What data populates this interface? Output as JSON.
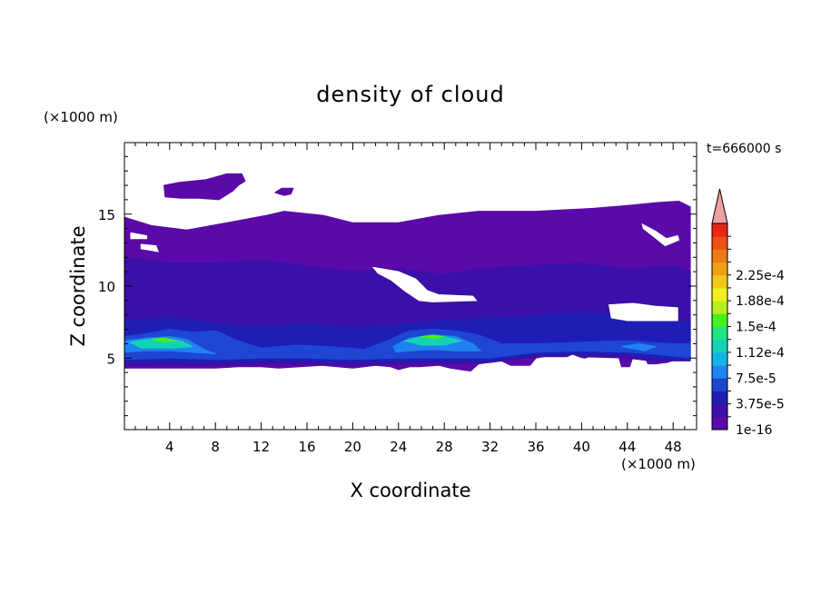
{
  "chart_data": {
    "type": "heatmap",
    "title": "density of cloud",
    "xlabel": "X coordinate",
    "ylabel": "Z coordinate",
    "x_unit": "(×1000 m)",
    "y_unit": "(×1000 m)",
    "time_label": "t=666000 s",
    "xlim": [
      0,
      50
    ],
    "ylim": [
      0,
      20
    ],
    "x_ticks": [
      4,
      8,
      12,
      16,
      20,
      24,
      28,
      32,
      36,
      40,
      44,
      48
    ],
    "y_ticks": [
      5,
      10,
      15
    ],
    "colorbar": {
      "labels": [
        "1e-16",
        "3.75e-5",
        "7.5e-5",
        "1.12e-4",
        "1.5e-4",
        "1.88e-4",
        "2.25e-4"
      ],
      "colors": [
        "#5a0aa8",
        "#3a10a8",
        "#1e1eb4",
        "#1e46d2",
        "#1e82f0",
        "#14b4e6",
        "#14d2b4",
        "#1ee682",
        "#46f01e",
        "#b4f01e",
        "#f0f01e",
        "#f0c814",
        "#f0a014",
        "#f07814",
        "#f05014",
        "#e62814"
      ],
      "extend_color": "#f0a0a0"
    },
    "cloud_layers": [
      {
        "level": "1e-16",
        "color": "#5a0aa8",
        "outline": [
          [
            0,
            14.8
          ],
          [
            2.4,
            14.2
          ],
          [
            5.5,
            13.9
          ],
          [
            9,
            14.4
          ],
          [
            12.4,
            14.9
          ],
          [
            14,
            15.2
          ],
          [
            17.5,
            14.9
          ],
          [
            20,
            14.4
          ],
          [
            24,
            14.4
          ],
          [
            27.5,
            14.9
          ],
          [
            31,
            15.2
          ],
          [
            36,
            15.2
          ],
          [
            41,
            15.4
          ],
          [
            44,
            15.6
          ],
          [
            46.5,
            15.8
          ],
          [
            48.5,
            15.9
          ],
          [
            49.5,
            15.5
          ],
          [
            49.5,
            9.4
          ],
          [
            49,
            6.2
          ],
          [
            48.5,
            5.0
          ],
          [
            47.5,
            4.7
          ],
          [
            46.5,
            4.6
          ],
          [
            45.8,
            4.6
          ],
          [
            45.5,
            5.1
          ],
          [
            44.5,
            5.1
          ],
          [
            44.2,
            4.4
          ],
          [
            43.5,
            4.4
          ],
          [
            43.2,
            5.2
          ],
          [
            41.5,
            5.3
          ],
          [
            40.3,
            5.0
          ],
          [
            38,
            5.3
          ],
          [
            36,
            5.0
          ],
          [
            35.5,
            4.5
          ],
          [
            33.8,
            4.5
          ],
          [
            33,
            4.8
          ],
          [
            31,
            4.6
          ],
          [
            30.3,
            4.1
          ],
          [
            28.5,
            4.3
          ],
          [
            27.5,
            4.5
          ],
          [
            25.8,
            4.4
          ],
          [
            25,
            4.4
          ],
          [
            24,
            4.2
          ],
          [
            23.3,
            4.4
          ],
          [
            22,
            4.5
          ],
          [
            20,
            4.3
          ],
          [
            17.3,
            4.5
          ],
          [
            13.5,
            4.3
          ],
          [
            12,
            4.4
          ],
          [
            10,
            4.4
          ],
          [
            8,
            4.3
          ],
          [
            5,
            4.3
          ],
          [
            3,
            4.3
          ],
          [
            0,
            4.3
          ]
        ]
      },
      {
        "level": "1e-16",
        "color": "#5a0aa8",
        "outline": [
          [
            3.5,
            17.0
          ],
          [
            4.8,
            17.2
          ],
          [
            7.2,
            17.4
          ],
          [
            9.0,
            17.8
          ],
          [
            10.3,
            17.8
          ],
          [
            10.6,
            17.3
          ],
          [
            10.0,
            17.0
          ],
          [
            9.5,
            16.6
          ],
          [
            8.3,
            16.0
          ],
          [
            6.5,
            16.1
          ],
          [
            5.0,
            16.1
          ],
          [
            3.6,
            16.2
          ]
        ]
      },
      {
        "level": "1e-16",
        "color": "#5a0aa8",
        "outline": [
          [
            13.2,
            16.5
          ],
          [
            13.8,
            16.8
          ],
          [
            14.8,
            16.8
          ],
          [
            14.6,
            16.4
          ],
          [
            14.0,
            16.3
          ]
        ]
      },
      {
        "level": "3.75e-5",
        "color": "#3a10a8",
        "outline": [
          [
            0,
            12.0
          ],
          [
            4,
            11.6
          ],
          [
            8,
            11.6
          ],
          [
            12,
            11.8
          ],
          [
            16,
            11.4
          ],
          [
            20,
            11.0
          ],
          [
            24,
            11.2
          ],
          [
            28,
            10.8
          ],
          [
            31,
            11.2
          ],
          [
            35,
            11.4
          ],
          [
            40,
            11.6
          ],
          [
            44,
            11.2
          ],
          [
            48,
            11.4
          ],
          [
            49.5,
            11.0
          ],
          [
            49.5,
            4.8
          ],
          [
            46,
            4.8
          ],
          [
            44,
            5.0
          ],
          [
            40,
            5.1
          ],
          [
            36,
            5.1
          ],
          [
            32,
            4.7
          ],
          [
            28,
            4.6
          ],
          [
            24,
            4.6
          ],
          [
            20,
            4.5
          ],
          [
            16,
            4.6
          ],
          [
            12,
            4.6
          ],
          [
            8,
            4.5
          ],
          [
            4,
            4.5
          ],
          [
            0,
            4.5
          ]
        ]
      },
      {
        "level": "7.5e-5",
        "color": "#1e1eb4",
        "outline": [
          [
            0,
            7.6
          ],
          [
            4,
            7.8
          ],
          [
            8,
            7.4
          ],
          [
            12,
            7.2
          ],
          [
            16,
            7.4
          ],
          [
            20,
            7.1
          ],
          [
            24,
            7.3
          ],
          [
            28,
            7.6
          ],
          [
            32,
            7.8
          ],
          [
            36,
            7.9
          ],
          [
            40,
            8.2
          ],
          [
            44,
            7.9
          ],
          [
            48,
            7.7
          ],
          [
            49.5,
            7.4
          ],
          [
            49.5,
            4.9
          ],
          [
            46,
            5.0
          ],
          [
            44,
            5.3
          ],
          [
            40,
            5.3
          ],
          [
            36,
            5.2
          ],
          [
            32,
            4.8
          ],
          [
            28,
            4.8
          ],
          [
            24,
            4.8
          ],
          [
            20,
            4.7
          ],
          [
            16,
            4.8
          ],
          [
            12,
            4.8
          ],
          [
            8,
            4.7
          ],
          [
            4,
            4.7
          ],
          [
            0,
            4.7
          ]
        ]
      },
      {
        "level": "1.12e-4",
        "color": "#1e46d2",
        "outline": [
          [
            0,
            6.5
          ],
          [
            2,
            6.7
          ],
          [
            4,
            7.0
          ],
          [
            6,
            6.8
          ],
          [
            8,
            6.9
          ],
          [
            10,
            6.2
          ],
          [
            12,
            5.7
          ],
          [
            15,
            5.9
          ],
          [
            18,
            5.8
          ],
          [
            21,
            5.6
          ],
          [
            23,
            6.2
          ],
          [
            25,
            6.9
          ],
          [
            27,
            7.0
          ],
          [
            29,
            6.9
          ],
          [
            31,
            6.6
          ],
          [
            33,
            6.0
          ],
          [
            36,
            6.0
          ],
          [
            40,
            6.1
          ],
          [
            44,
            6.2
          ],
          [
            48,
            6.0
          ],
          [
            49.5,
            6.0
          ],
          [
            49.5,
            5.0
          ],
          [
            46,
            5.3
          ],
          [
            44,
            5.4
          ],
          [
            40,
            5.5
          ],
          [
            36,
            5.4
          ],
          [
            32,
            5.0
          ],
          [
            28,
            5.0
          ],
          [
            24,
            5.0
          ],
          [
            20,
            4.9
          ],
          [
            16,
            5.0
          ],
          [
            12,
            5.0
          ],
          [
            8,
            4.9
          ],
          [
            4,
            5.0
          ],
          [
            0,
            4.9
          ]
        ]
      },
      {
        "level": "1.5e-4",
        "color": "#1e82f0",
        "outline": [
          [
            0,
            6.2
          ],
          [
            2,
            6.4
          ],
          [
            4,
            6.5
          ],
          [
            5.5,
            6.3
          ],
          [
            7,
            5.6
          ],
          [
            8,
            5.3
          ],
          [
            6,
            5.4
          ],
          [
            4,
            5.5
          ],
          [
            2,
            5.5
          ],
          [
            0,
            5.4
          ]
        ]
      },
      {
        "level": "1.5e-4",
        "color": "#1e82f0",
        "outline": [
          [
            23.5,
            5.8
          ],
          [
            25,
            6.4
          ],
          [
            27,
            6.6
          ],
          [
            29,
            6.5
          ],
          [
            30.5,
            6.0
          ],
          [
            31.2,
            5.5
          ],
          [
            29,
            5.5
          ],
          [
            27,
            5.6
          ],
          [
            25,
            5.5
          ],
          [
            23.8,
            5.4
          ]
        ]
      },
      {
        "level": "1.5e-4",
        "color": "#1e82f0",
        "outline": [
          [
            43.5,
            5.8
          ],
          [
            45,
            6.0
          ],
          [
            46.5,
            5.8
          ],
          [
            45.5,
            5.5
          ]
        ]
      },
      {
        "level": "1.88e-4",
        "color": "#14d2b4",
        "outline": [
          [
            0.5,
            6.1
          ],
          [
            2,
            6.3
          ],
          [
            3.5,
            6.4
          ],
          [
            5,
            6.2
          ],
          [
            6,
            5.8
          ],
          [
            4.5,
            5.7
          ],
          [
            3,
            5.7
          ],
          [
            1.5,
            5.7
          ]
        ]
      },
      {
        "level": "1.88e-4",
        "color": "#14d2b4",
        "outline": [
          [
            24.5,
            6.2
          ],
          [
            26,
            6.5
          ],
          [
            28,
            6.5
          ],
          [
            29.5,
            6.2
          ],
          [
            28,
            5.9
          ],
          [
            26,
            5.9
          ]
        ]
      },
      {
        "level": "2.25e-4",
        "color": "#46f01e",
        "outline": [
          [
            2.5,
            6.3
          ],
          [
            3.5,
            6.4
          ],
          [
            4.5,
            6.2
          ],
          [
            3.5,
            6.1
          ]
        ]
      },
      {
        "level": "2.25e-4",
        "color": "#46f01e",
        "outline": [
          [
            26,
            6.5
          ],
          [
            27,
            6.6
          ],
          [
            28,
            6.5
          ],
          [
            27,
            6.35
          ]
        ]
      }
    ],
    "clear_regions": [
      [
        [
          0.6,
          13.7
        ],
        [
          2.0,
          13.5
        ],
        [
          2.0,
          13.3
        ],
        [
          0.6,
          13.3
        ]
      ],
      [
        [
          1.5,
          12.9
        ],
        [
          2.8,
          12.8
        ],
        [
          3.0,
          12.4
        ],
        [
          1.5,
          12.6
        ]
      ],
      [
        [
          21.8,
          11.3
        ],
        [
          24,
          11.0
        ],
        [
          25.5,
          10.5
        ],
        [
          26.5,
          9.7
        ],
        [
          27.5,
          9.4
        ],
        [
          30.5,
          9.3
        ],
        [
          30.8,
          9.0
        ],
        [
          27.0,
          8.9
        ],
        [
          25.8,
          9.0
        ],
        [
          24.5,
          9.7
        ],
        [
          23.4,
          10.4
        ],
        [
          22.2,
          10.9
        ]
      ],
      [
        [
          42.4,
          8.7
        ],
        [
          44.5,
          8.8
        ],
        [
          46.5,
          8.6
        ],
        [
          48.4,
          8.5
        ],
        [
          48.4,
          7.6
        ],
        [
          46,
          7.6
        ],
        [
          44,
          7.6
        ],
        [
          42.6,
          7.8
        ]
      ],
      [
        [
          45.3,
          14.3
        ],
        [
          46.5,
          13.8
        ],
        [
          47.4,
          13.3
        ],
        [
          48.4,
          13.5
        ],
        [
          48.5,
          13.2
        ],
        [
          47.3,
          12.8
        ],
        [
          46.2,
          13.5
        ],
        [
          45.4,
          14.0
        ]
      ],
      [
        [
          38.4,
          4.9
        ],
        [
          39.2,
          5.2
        ],
        [
          39.9,
          5.0
        ],
        [
          39.4,
          4.6
        ]
      ]
    ]
  }
}
